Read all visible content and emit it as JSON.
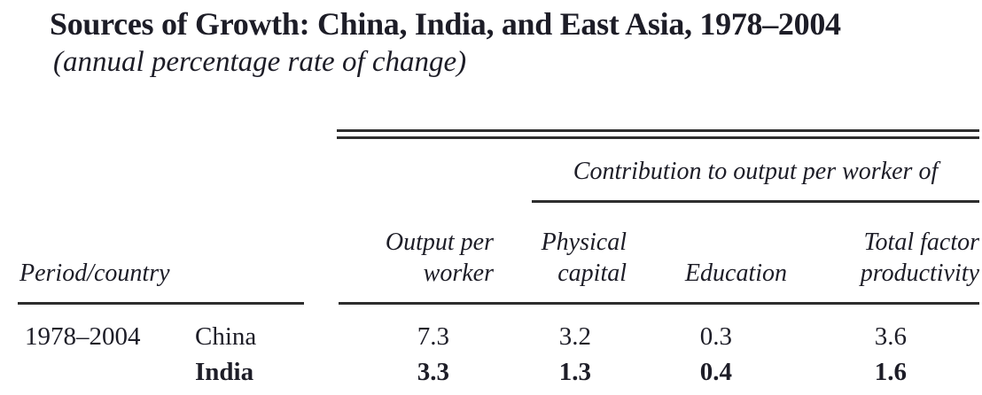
{
  "title": "Sources of Growth: China, India, and East Asia, 1978–2004",
  "subtitle": "(annual percentage rate of change)",
  "table": {
    "spanner_label": "Contribution to output per worker of",
    "row_header": "Period/country",
    "headers": {
      "output_line1": "Output per",
      "output_line2": "worker",
      "physical_line1": "Physical",
      "physical_line2": "capital",
      "education": "Education",
      "tfp_line1": "Total factor",
      "tfp_line2": "productivity"
    },
    "rows": [
      {
        "period": "1978–2004",
        "country": "China",
        "output": "7.3",
        "physical": "3.2",
        "education": "0.3",
        "tfp": "3.6"
      },
      {
        "period": "",
        "country": "India",
        "output": "3.3",
        "physical": "1.3",
        "education": "0.4",
        "tfp": "1.6"
      }
    ]
  },
  "colors": {
    "text": "#1d1d27",
    "rule": "#2e2e2e",
    "background": "#ffffff"
  },
  "chart_data": {
    "type": "table",
    "title": "Sources of Growth: China, India, and East Asia, 1978–2004",
    "subtitle": "(annual percentage rate of change)",
    "column_group": "Contribution to output per worker of",
    "columns": [
      "Period",
      "Country",
      "Output per worker",
      "Physical capital",
      "Education",
      "Total factor productivity"
    ],
    "rows": [
      [
        "1978–2004",
        "China",
        7.3,
        3.2,
        0.3,
        3.6
      ],
      [
        "1978–2004",
        "India",
        3.3,
        1.3,
        0.4,
        1.6
      ]
    ]
  }
}
